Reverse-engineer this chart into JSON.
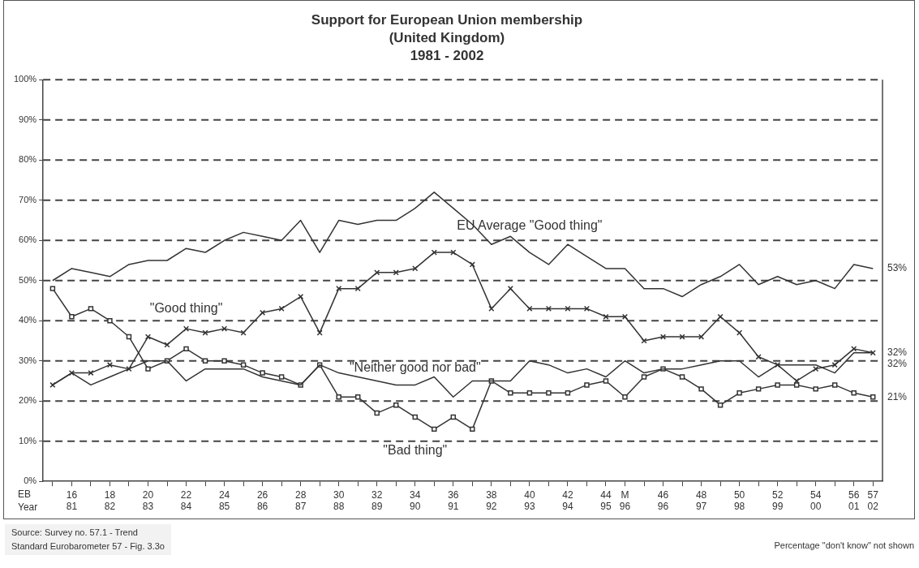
{
  "chart_data": {
    "type": "line",
    "title": "Support for European Union membership\n(United Kingdom)\n1981 - 2002",
    "xlabel": "EB\nYear",
    "categories": [
      null,
      "16\n81",
      null,
      "18\n82",
      null,
      "20\n83",
      null,
      "22\n84",
      null,
      "24\n85",
      null,
      "26\n86",
      null,
      "28\n87",
      null,
      "30\n88",
      null,
      "32\n89",
      null,
      "34\n90",
      null,
      "36\n91",
      null,
      "38\n92",
      null,
      "40\n93",
      null,
      "42\n94",
      null,
      "44\n95",
      "M\n96",
      null,
      "46\n96",
      null,
      "48\n97",
      null,
      "50\n98",
      null,
      "52\n99",
      null,
      "54\n00",
      null,
      "56\n01",
      "57\n02"
    ],
    "series": [
      {
        "name": "EU Average \"Good thing\"",
        "color": "#333333",
        "marker": "none",
        "values": [
          50,
          53,
          52,
          51,
          54,
          55,
          55,
          58,
          57,
          60,
          62,
          61,
          60,
          65,
          57,
          65,
          64,
          65,
          65,
          68,
          72,
          68,
          64,
          59,
          61,
          57,
          54,
          59,
          56,
          53,
          53,
          48,
          48,
          46,
          49,
          51,
          54,
          49,
          51,
          49,
          50,
          48,
          54,
          53
        ],
        "value_labels": [
          null,
          null,
          null,
          null,
          null,
          null,
          null,
          null,
          null,
          null,
          null,
          null,
          null,
          null,
          null,
          null,
          null,
          null,
          null,
          null,
          null,
          null,
          null,
          null,
          null,
          null,
          null,
          null,
          null,
          null,
          null,
          null,
          null,
          null,
          null,
          null,
          null,
          null,
          null,
          null,
          null,
          null,
          null,
          "53%"
        ]
      },
      {
        "name": "\"Good thing\"",
        "color": "#333333",
        "marker": "cross",
        "values": [
          24,
          27,
          27,
          29,
          28,
          36,
          34,
          38,
          37,
          38,
          37,
          42,
          43,
          46,
          37,
          48,
          48,
          52,
          52,
          53,
          57,
          57,
          54,
          43,
          48,
          43,
          43,
          43,
          43,
          41,
          41,
          35,
          36,
          36,
          36,
          41,
          37,
          31,
          29,
          25,
          28,
          29,
          33,
          32
        ],
        "value_labels": [
          null,
          null,
          null,
          null,
          null,
          null,
          null,
          null,
          null,
          null,
          null,
          null,
          null,
          null,
          null,
          null,
          null,
          null,
          null,
          null,
          null,
          null,
          null,
          null,
          null,
          null,
          null,
          null,
          null,
          null,
          null,
          null,
          null,
          null,
          null,
          null,
          null,
          null,
          null,
          null,
          null,
          null,
          null,
          "32%"
        ]
      },
      {
        "name": "\"Neither good nor bad\"",
        "color": "#333333",
        "marker": "none",
        "values": [
          24,
          27,
          24,
          26,
          28,
          30,
          30,
          25,
          28,
          28,
          28,
          26,
          25,
          24,
          29,
          27,
          26,
          25,
          24,
          24,
          26,
          21,
          25,
          25,
          25,
          30,
          29,
          27,
          28,
          26,
          30,
          27,
          28,
          28,
          29,
          30,
          30,
          26,
          29,
          29,
          29,
          27,
          32,
          32
        ],
        "value_labels": [
          null,
          null,
          null,
          null,
          null,
          null,
          null,
          null,
          null,
          null,
          null,
          null,
          null,
          null,
          null,
          null,
          null,
          null,
          null,
          null,
          null,
          null,
          null,
          null,
          null,
          null,
          null,
          null,
          null,
          null,
          null,
          null,
          null,
          null,
          null,
          null,
          null,
          null,
          null,
          null,
          null,
          null,
          null,
          "32%"
        ]
      },
      {
        "name": "\"Bad thing\"",
        "color": "#333333",
        "marker": "square",
        "values": [
          48,
          41,
          43,
          40,
          36,
          28,
          30,
          33,
          30,
          30,
          29,
          27,
          26,
          24,
          29,
          21,
          21,
          17,
          19,
          16,
          13,
          16,
          13,
          25,
          22,
          22,
          22,
          22,
          24,
          25,
          21,
          26,
          28,
          26,
          23,
          19,
          22,
          23,
          24,
          24,
          23,
          24,
          22,
          21
        ],
        "value_labels": [
          null,
          null,
          null,
          null,
          null,
          null,
          null,
          null,
          null,
          null,
          null,
          null,
          null,
          null,
          null,
          null,
          null,
          null,
          null,
          null,
          null,
          null,
          null,
          null,
          null,
          null,
          null,
          null,
          null,
          null,
          null,
          null,
          null,
          null,
          null,
          null,
          null,
          null,
          null,
          null,
          null,
          null,
          null,
          "21%"
        ]
      }
    ],
    "ylim": [
      0,
      100
    ],
    "yticks": [
      {
        "value": 0,
        "label": "0%"
      },
      {
        "value": 10,
        "label": "10%"
      },
      {
        "value": 20,
        "label": "20%"
      },
      {
        "value": 30,
        "label": "30%"
      },
      {
        "value": 40,
        "label": "40%"
      },
      {
        "value": 50,
        "label": "50%"
      },
      {
        "value": 60,
        "label": "60%"
      },
      {
        "value": 70,
        "label": "70%"
      },
      {
        "value": 80,
        "label": "80%"
      },
      {
        "value": 90,
        "label": "90%"
      },
      {
        "value": 100,
        "label": "100%"
      }
    ],
    "grid": "y",
    "legend": false,
    "annotations": [
      "Source: Survey no. 57.1 - Trend\nStandard Eurobarometer 57 - Fig. 3.3o",
      "Percentage \"don't know\" not shown"
    ]
  }
}
